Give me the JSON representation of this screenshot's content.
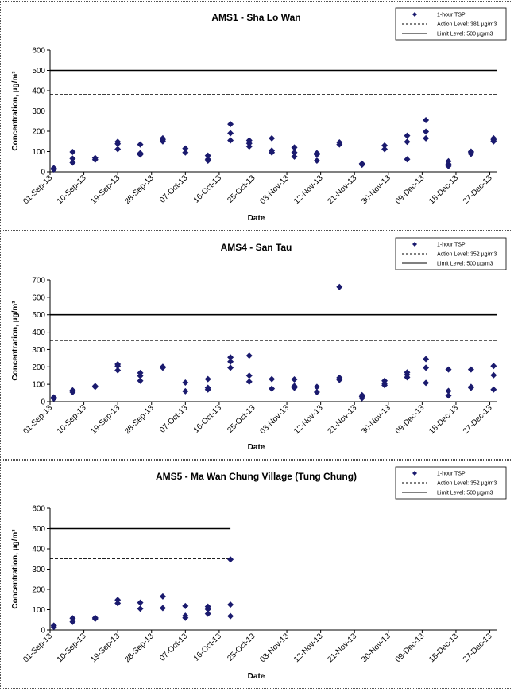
{
  "chart_data": [
    {
      "type": "scatter",
      "title": "AMS1 - Sha Lo Wan",
      "xlabel": "Date",
      "ylabel": "Concentration, µg/m³",
      "ylim": [
        0,
        600
      ],
      "yticks": [
        "0",
        "100",
        "200",
        "300",
        "400",
        "500",
        "600"
      ],
      "xlim": [
        "2013-09-01",
        "2013-12-29"
      ],
      "xtick_labels": [
        "01-Sep-13",
        "10-Sep-13",
        "19-Sep-13",
        "28-Sep-13",
        "07-Oct-13",
        "16-Oct-13",
        "25-Oct-13",
        "03-Nov-13",
        "12-Nov-13",
        "21-Nov-13",
        "30-Nov-13",
        "09-Dec-13",
        "18-Dec-13",
        "27-Dec-13"
      ],
      "legend": {
        "position": "top-right",
        "entries": [
          "1-hour TSP",
          "Action Level: 381 µg/m3",
          "Limit Level: 500 µg/m3"
        ]
      },
      "series": [
        {
          "name": "1-hour TSP",
          "marker": "diamond",
          "color": "#1a1a6e",
          "points": [
            [
              "2013-09-02",
              12
            ],
            [
              "2013-09-02",
              18
            ],
            [
              "2013-09-07",
              45
            ],
            [
              "2013-09-07",
              65
            ],
            [
              "2013-09-07",
              98
            ],
            [
              "2013-09-13",
              60
            ],
            [
              "2013-09-13",
              68
            ],
            [
              "2013-09-19",
              112
            ],
            [
              "2013-09-19",
              138
            ],
            [
              "2013-09-19",
              148
            ],
            [
              "2013-09-25",
              85
            ],
            [
              "2013-09-25",
              92
            ],
            [
              "2013-09-25",
              135
            ],
            [
              "2013-10-01",
              150
            ],
            [
              "2013-10-01",
              158
            ],
            [
              "2013-10-01",
              165
            ],
            [
              "2013-10-07",
              95
            ],
            [
              "2013-10-07",
              115
            ],
            [
              "2013-10-13",
              55
            ],
            [
              "2013-10-13",
              62
            ],
            [
              "2013-10-13",
              80
            ],
            [
              "2013-10-19",
              155
            ],
            [
              "2013-10-19",
              190
            ],
            [
              "2013-10-19",
              235
            ],
            [
              "2013-10-24",
              125
            ],
            [
              "2013-10-24",
              140
            ],
            [
              "2013-10-24",
              155
            ],
            [
              "2013-10-30",
              95
            ],
            [
              "2013-10-30",
              105
            ],
            [
              "2013-10-30",
              165
            ],
            [
              "2013-11-05",
              75
            ],
            [
              "2013-11-05",
              95
            ],
            [
              "2013-11-05",
              120
            ],
            [
              "2013-11-11",
              55
            ],
            [
              "2013-11-11",
              85
            ],
            [
              "2013-11-11",
              92
            ],
            [
              "2013-11-17",
              135
            ],
            [
              "2013-11-17",
              145
            ],
            [
              "2013-11-23",
              35
            ],
            [
              "2013-11-23",
              40
            ],
            [
              "2013-11-29",
              112
            ],
            [
              "2013-11-29",
              130
            ],
            [
              "2013-12-05",
              62
            ],
            [
              "2013-12-05",
              148
            ],
            [
              "2013-12-05",
              178
            ],
            [
              "2013-12-10",
              165
            ],
            [
              "2013-12-10",
              198
            ],
            [
              "2013-12-10",
              255
            ],
            [
              "2013-12-16",
              28
            ],
            [
              "2013-12-16",
              38
            ],
            [
              "2013-12-16",
              52
            ],
            [
              "2013-12-22",
              88
            ],
            [
              "2013-12-22",
              95
            ],
            [
              "2013-12-22",
              100
            ],
            [
              "2013-12-28",
              150
            ],
            [
              "2013-12-28",
              158
            ],
            [
              "2013-12-28",
              165
            ]
          ]
        }
      ],
      "lines": [
        {
          "name": "Action Level: 381 µg/m3",
          "value": 381,
          "style": "dashed",
          "from": "2013-09-01",
          "to": "2013-12-29"
        },
        {
          "name": "Limit Level: 500 µg/m3",
          "value": 500,
          "style": "solid",
          "from": "2013-09-01",
          "to": "2013-12-29"
        }
      ]
    },
    {
      "type": "scatter",
      "title": "AMS4 - San Tau",
      "xlabel": "Date",
      "ylabel": "Concentration, µg/m³",
      "ylim": [
        0,
        700
      ],
      "yticks": [
        "0",
        "100",
        "200",
        "300",
        "400",
        "500",
        "600",
        "700"
      ],
      "xlim": [
        "2013-09-01",
        "2013-12-29"
      ],
      "xtick_labels": [
        "01-Sep-13",
        "10-Sep-13",
        "19-Sep-13",
        "28-Sep-13",
        "07-Oct-13",
        "16-Oct-13",
        "25-Oct-13",
        "03-Nov-13",
        "12-Nov-13",
        "21-Nov-13",
        "30-Nov-13",
        "09-Dec-13",
        "18-Dec-13",
        "27-Dec-13"
      ],
      "legend": {
        "position": "top-right",
        "entries": [
          "1-hour TSP",
          "Action Level: 352 µg/m3",
          "Limit Level: 500 µg/m3"
        ]
      },
      "series": [
        {
          "name": "1-hour TSP",
          "marker": "diamond",
          "color": "#1a1a6e",
          "points": [
            [
              "2013-09-02",
              18
            ],
            [
              "2013-09-02",
              25
            ],
            [
              "2013-09-07",
              55
            ],
            [
              "2013-09-07",
              65
            ],
            [
              "2013-09-13",
              85
            ],
            [
              "2013-09-13",
              90
            ],
            [
              "2013-09-19",
              180
            ],
            [
              "2013-09-19",
              205
            ],
            [
              "2013-09-19",
              215
            ],
            [
              "2013-09-25",
              120
            ],
            [
              "2013-09-25",
              148
            ],
            [
              "2013-09-25",
              165
            ],
            [
              "2013-10-01",
              195
            ],
            [
              "2013-10-01",
              200
            ],
            [
              "2013-10-07",
              60
            ],
            [
              "2013-10-07",
              110
            ],
            [
              "2013-10-13",
              70
            ],
            [
              "2013-10-13",
              80
            ],
            [
              "2013-10-13",
              130
            ],
            [
              "2013-10-19",
              195
            ],
            [
              "2013-10-19",
              230
            ],
            [
              "2013-10-19",
              255
            ],
            [
              "2013-10-24",
              115
            ],
            [
              "2013-10-24",
              150
            ],
            [
              "2013-10-24",
              265
            ],
            [
              "2013-10-30",
              75
            ],
            [
              "2013-10-30",
              130
            ],
            [
              "2013-11-05",
              80
            ],
            [
              "2013-11-05",
              90
            ],
            [
              "2013-11-05",
              128
            ],
            [
              "2013-11-11",
              55
            ],
            [
              "2013-11-11",
              85
            ],
            [
              "2013-11-17",
              125
            ],
            [
              "2013-11-17",
              138
            ],
            [
              "2013-11-17",
              660
            ],
            [
              "2013-11-23",
              20
            ],
            [
              "2013-11-23",
              30
            ],
            [
              "2013-11-23",
              38
            ],
            [
              "2013-11-29",
              95
            ],
            [
              "2013-11-29",
              105
            ],
            [
              "2013-11-29",
              120
            ],
            [
              "2013-12-05",
              140
            ],
            [
              "2013-12-05",
              155
            ],
            [
              "2013-12-05",
              168
            ],
            [
              "2013-12-10",
              108
            ],
            [
              "2013-12-10",
              195
            ],
            [
              "2013-12-10",
              245
            ],
            [
              "2013-12-16",
              35
            ],
            [
              "2013-12-16",
              62
            ],
            [
              "2013-12-16",
              185
            ],
            [
              "2013-12-22",
              80
            ],
            [
              "2013-12-22",
              85
            ],
            [
              "2013-12-22",
              185
            ],
            [
              "2013-12-28",
              70
            ],
            [
              "2013-12-28",
              152
            ],
            [
              "2013-12-28",
              205
            ]
          ]
        }
      ],
      "lines": [
        {
          "name": "Action Level: 352 µg/m3",
          "value": 352,
          "style": "dashed",
          "from": "2013-09-01",
          "to": "2013-12-29"
        },
        {
          "name": "Limit Level: 500 µg/m3",
          "value": 500,
          "style": "solid",
          "from": "2013-09-01",
          "to": "2013-12-29"
        }
      ]
    },
    {
      "type": "scatter",
      "title": "AMS5 - Ma Wan Chung Village (Tung Chung)",
      "xlabel": "Date",
      "ylabel": "Concentration, µg/m³",
      "ylim": [
        0,
        600
      ],
      "yticks": [
        "0",
        "100",
        "200",
        "300",
        "400",
        "500",
        "600"
      ],
      "xlim": [
        "2013-09-01",
        "2013-12-29"
      ],
      "xtick_labels": [
        "01-Sep-13",
        "10-Sep-13",
        "19-Sep-13",
        "28-Sep-13",
        "07-Oct-13",
        "16-Oct-13",
        "25-Oct-13",
        "03-Nov-13",
        "12-Nov-13",
        "21-Nov-13",
        "30-Nov-13",
        "09-Dec-13",
        "18-Dec-13",
        "27-Dec-13"
      ],
      "legend": {
        "position": "top-right",
        "entries": [
          "1-hour TSP",
          "Action Level: 352 µg/m3",
          "Limit Level: 500 µg/m3"
        ]
      },
      "series": [
        {
          "name": "1-hour TSP",
          "marker": "diamond",
          "color": "#1a1a6e",
          "points": [
            [
              "2013-09-02",
              15
            ],
            [
              "2013-09-02",
              22
            ],
            [
              "2013-09-07",
              40
            ],
            [
              "2013-09-07",
              58
            ],
            [
              "2013-09-13",
              55
            ],
            [
              "2013-09-13",
              60
            ],
            [
              "2013-09-19",
              132
            ],
            [
              "2013-09-19",
              148
            ],
            [
              "2013-09-25",
              105
            ],
            [
              "2013-09-25",
              135
            ],
            [
              "2013-10-01",
              108
            ],
            [
              "2013-10-01",
              165
            ],
            [
              "2013-10-07",
              60
            ],
            [
              "2013-10-07",
              70
            ],
            [
              "2013-10-07",
              118
            ],
            [
              "2013-10-13",
              80
            ],
            [
              "2013-10-13",
              102
            ],
            [
              "2013-10-13",
              115
            ],
            [
              "2013-10-19",
              68
            ],
            [
              "2013-10-19",
              125
            ],
            [
              "2013-10-19",
              348
            ]
          ]
        }
      ],
      "lines": [
        {
          "name": "Action Level: 352 µg/m3",
          "value": 352,
          "style": "dashed",
          "from": "2013-09-01",
          "to": "2013-10-19"
        },
        {
          "name": "Limit Level: 500 µg/m3",
          "value": 500,
          "style": "solid",
          "from": "2013-09-01",
          "to": "2013-10-19"
        }
      ]
    }
  ]
}
